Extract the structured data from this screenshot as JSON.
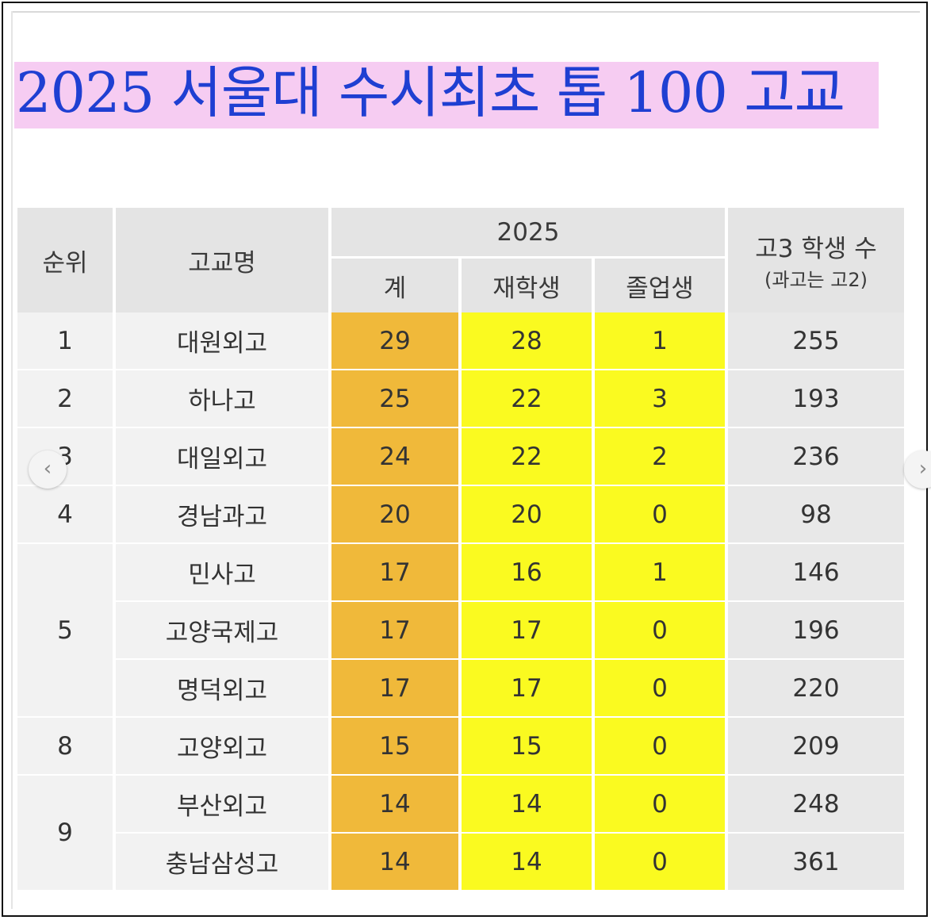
{
  "title": "2025 서울대 수시최초 톱 100 고교",
  "table": {
    "headers": {
      "rank": "순위",
      "school": "고교명",
      "year": "2025",
      "total": "계",
      "current": "재학생",
      "graduate": "졸업생",
      "students": "고3 학생 수",
      "students_note": "(과고는 고2)"
    },
    "rows": [
      {
        "rank": "1",
        "school": "대원외고",
        "total": "29",
        "current": "28",
        "graduate": "1",
        "students": "255"
      },
      {
        "rank": "2",
        "school": "하나고",
        "total": "25",
        "current": "22",
        "graduate": "3",
        "students": "193"
      },
      {
        "rank": "3",
        "school": "대일외고",
        "total": "24",
        "current": "22",
        "graduate": "2",
        "students": "236"
      },
      {
        "rank": "4",
        "school": "경남과고",
        "total": "20",
        "current": "20",
        "graduate": "0",
        "students": "98"
      },
      {
        "rank": "5",
        "school": "민사고",
        "total": "17",
        "current": "16",
        "graduate": "1",
        "students": "146"
      },
      {
        "rank": "",
        "school": "고양국제고",
        "total": "17",
        "current": "17",
        "graduate": "0",
        "students": "196"
      },
      {
        "rank": "",
        "school": "명덕외고",
        "total": "17",
        "current": "17",
        "graduate": "0",
        "students": "220"
      },
      {
        "rank": "8",
        "school": "고양외고",
        "total": "15",
        "current": "15",
        "graduate": "0",
        "students": "209"
      },
      {
        "rank": "9",
        "school": "부산외고",
        "total": "14",
        "current": "14",
        "graduate": "0",
        "students": "248"
      },
      {
        "rank": "",
        "school": "충남삼성고",
        "total": "14",
        "current": "14",
        "graduate": "0",
        "students": "361"
      }
    ]
  },
  "nav": {
    "prev_icon": "chevron-left-icon",
    "next_icon": "chevron-right-icon",
    "prev_glyph": "‹",
    "next_glyph": "›"
  },
  "colors": {
    "title": "#1f3fd2",
    "title_highlight": "#f6ccf2",
    "total_col": "#f0b93a",
    "yellow_cols": "#fafa20",
    "header": "#e4e4e4"
  }
}
